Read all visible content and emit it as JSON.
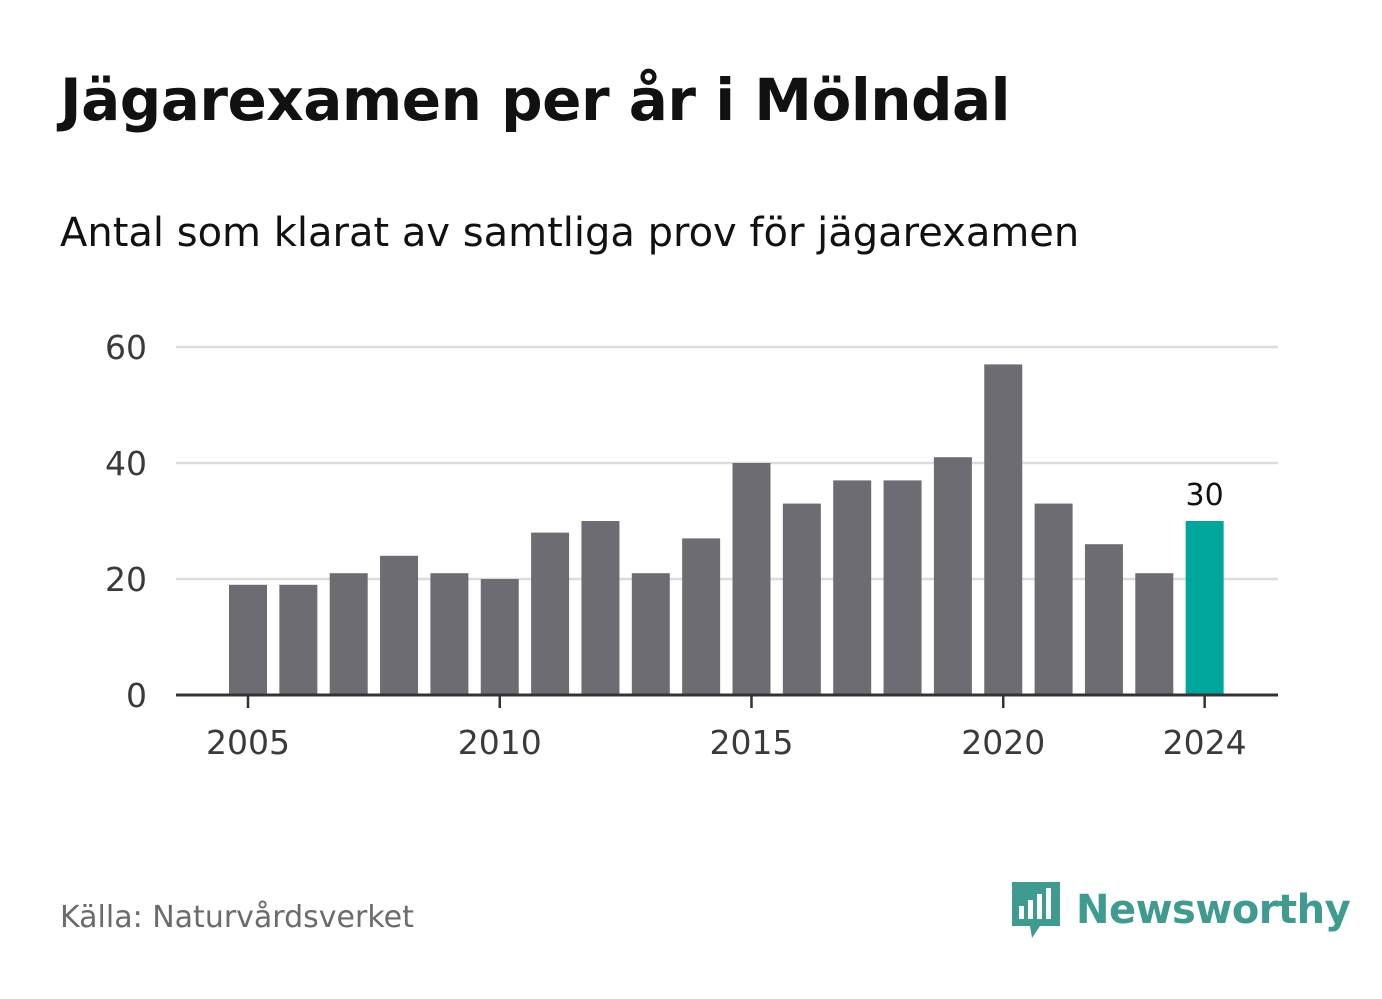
{
  "title": "Jägarexamen per år i Mölndal",
  "subtitle": "Antal som klarat av samtliga prov för jägarexamen",
  "source": "Källa: Naturvårdsverket",
  "brand": {
    "name": "Newsworthy",
    "icon": "newsworthy-bar-chart-bubble-icon",
    "color": "#3f9a8f"
  },
  "colors": {
    "bar": "#6d6c72",
    "highlight": "#00a69c",
    "grid": "#dcdcdc",
    "axis": "#333333"
  },
  "chart_data": {
    "type": "bar",
    "categories": [
      2005,
      2006,
      2007,
      2008,
      2009,
      2010,
      2011,
      2012,
      2013,
      2014,
      2015,
      2016,
      2017,
      2018,
      2019,
      2020,
      2021,
      2022,
      2023,
      2024
    ],
    "values": [
      19,
      19,
      21,
      24,
      21,
      20,
      28,
      30,
      21,
      27,
      40,
      33,
      37,
      37,
      41,
      57,
      33,
      26,
      21,
      30
    ],
    "highlight": {
      "category": 2024,
      "label": "30"
    },
    "x_ticks": [
      2005,
      2010,
      2015,
      2020,
      2024
    ],
    "y_ticks": [
      0,
      20,
      40,
      60
    ],
    "ylim": [
      0,
      60
    ],
    "grid": true,
    "legend": "none"
  }
}
